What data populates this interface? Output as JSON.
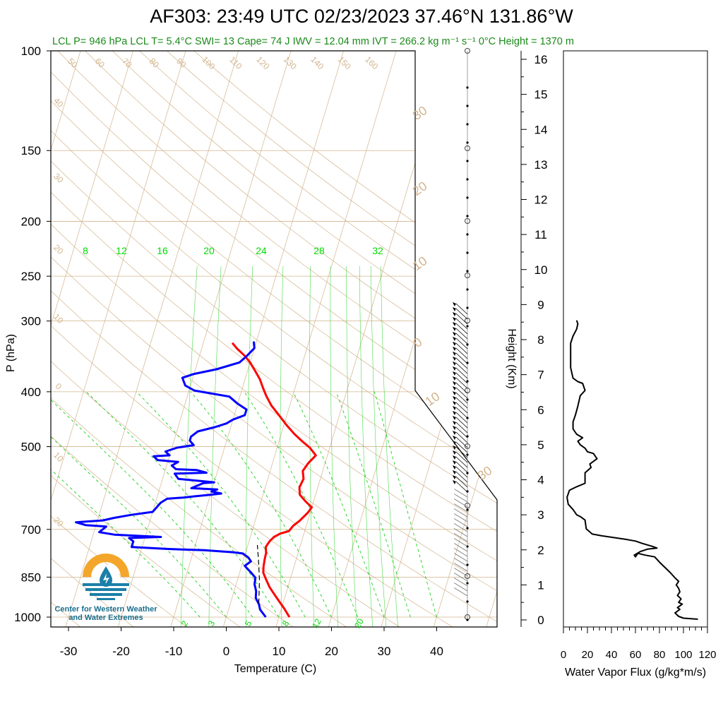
{
  "title": "AF303: 23:49 UTC 02/23/2023  37.46°N 131.86°W",
  "stats_line": "LCL P= 946 hPa  LCL T= 5.4°C  SWI= 13  Cape= 74 J  IWV = 12.04 mm  IVT = 266.2 kg m⁻¹ s⁻¹  0°C Height = 1370 m",
  "logo": {
    "text": "Center for Western Weather\nand Water Extremes",
    "icon": "water-drop-sun-icon",
    "colors": {
      "sun": "#f4a62a",
      "waves": "#1b7fa8"
    }
  },
  "colors": {
    "temperature": "#ff0000",
    "dewpoint": "#0000ff",
    "adiabat": "#d2b48c",
    "mixing_ratio": "#00cc00",
    "isobar": "#d2b48c"
  },
  "chart_data": [
    {
      "type": "line",
      "name": "skewt",
      "xlabel": "Temperature (C)",
      "ylabel": "P (hPa)",
      "y_scale": "log",
      "xlim": [
        -33,
        50
      ],
      "ylim": [
        1010,
        100
      ],
      "xticks": [
        -30,
        -20,
        -10,
        0,
        10,
        20,
        30,
        40
      ],
      "yticks": [
        100,
        150,
        200,
        250,
        300,
        400,
        500,
        700,
        850,
        1000
      ],
      "isotherm_labels": [
        "50",
        "60",
        "70",
        "80",
        "90",
        "100",
        "110",
        "120",
        "130",
        "140",
        "150",
        "160",
        "40",
        "30",
        "20",
        "10",
        "0",
        "10",
        "20"
      ],
      "isotherm_right_labels": [
        "30",
        "20",
        "10",
        "0",
        "10",
        "30"
      ],
      "mixing_ratio_top_labels": [
        "8",
        "12",
        "16",
        "20",
        "24",
        "28",
        "32"
      ],
      "mixing_ratio_bottom_labels": [
        "2",
        "3",
        "5",
        "8",
        "12",
        "20"
      ],
      "series": [
        {
          "role": "temperature",
          "points": [
            [
              12,
              1000
            ],
            [
              10.5,
              965
            ],
            [
              9,
              935
            ],
            [
              7.5,
              905
            ],
            [
              6.5,
              885
            ],
            [
              5.5,
              860
            ],
            [
              4.5,
              835
            ],
            [
              4.2,
              815
            ],
            [
              4,
              790
            ],
            [
              3.9,
              770
            ],
            [
              3.5,
              752
            ],
            [
              3.9,
              735
            ],
            [
              4.5,
              722
            ],
            [
              5.5,
              712
            ],
            [
              7,
              705
            ],
            [
              7.5,
              690
            ],
            [
              8.5,
              675
            ],
            [
              9.5,
              655
            ],
            [
              10,
              640
            ],
            [
              8.5,
              625
            ],
            [
              7,
              608
            ],
            [
              6.5,
              590
            ],
            [
              6.8,
              570
            ],
            [
              6.2,
              552
            ],
            [
              6.8,
              535
            ],
            [
              7.8,
              518
            ],
            [
              6.2,
              502
            ],
            [
              4.5,
              490
            ],
            [
              2.5,
              475
            ],
            [
              0.5,
              458
            ],
            [
              -1.5,
              440
            ],
            [
              -3.5,
              423
            ],
            [
              -5,
              407
            ],
            [
              -6,
              395
            ],
            [
              -7.2,
              380
            ],
            [
              -8.5,
              368
            ],
            [
              -10,
              355
            ],
            [
              -11.5,
              345
            ],
            [
              -13.2,
              336
            ],
            [
              -14.5,
              328
            ]
          ]
        },
        {
          "role": "dewpoint",
          "points": [
            [
              7.5,
              1000
            ],
            [
              6,
              970
            ],
            [
              5.5,
              950
            ],
            [
              4.5,
              925
            ],
            [
              4.2,
              900
            ],
            [
              3.5,
              875
            ],
            [
              3.3,
              852
            ],
            [
              2,
              832
            ],
            [
              0.6,
              812
            ],
            [
              1.5,
              797
            ],
            [
              0.8,
              785
            ],
            [
              -0.5,
              772
            ],
            [
              -2.5,
              768
            ],
            [
              -8,
              762
            ],
            [
              -15,
              758
            ],
            [
              -22,
              752
            ],
            [
              -22,
              735
            ],
            [
              -23,
              725
            ],
            [
              -17,
              722
            ],
            [
              -26,
              715
            ],
            [
              -29,
              708
            ],
            [
              -28,
              692
            ],
            [
              -32,
              688
            ],
            [
              -34,
              680
            ],
            [
              -29,
              675
            ],
            [
              -27,
              668
            ],
            [
              -24,
              660
            ],
            [
              -20,
              652
            ],
            [
              -19,
              628
            ],
            [
              -18,
              618
            ],
            [
              -15,
              615
            ],
            [
              -13,
              612
            ],
            [
              -10,
              608
            ],
            [
              -8,
              605
            ],
            [
              -10,
              600
            ],
            [
              -9,
              595
            ],
            [
              -14,
              592
            ],
            [
              -12,
              580
            ],
            [
              -10,
              578
            ],
            [
              -17,
              570
            ],
            [
              -18,
              558
            ],
            [
              -12,
              556
            ],
            [
              -14,
              550
            ],
            [
              -18,
              548
            ],
            [
              -19,
              540
            ],
            [
              -18,
              532
            ],
            [
              -22,
              528
            ],
            [
              -23,
              520
            ],
            [
              -20,
              518
            ],
            [
              -21,
              510
            ],
            [
              -19,
              502
            ],
            [
              -16,
              497
            ],
            [
              -17,
              488
            ],
            [
              -17,
              480
            ],
            [
              -16,
              470
            ],
            [
              -13,
              462
            ],
            [
              -11,
              455
            ],
            [
              -10,
              448
            ],
            [
              -8,
              440
            ],
            [
              -8,
              430
            ],
            [
              -10,
              420
            ],
            [
              -12,
              408
            ],
            [
              -19,
              398
            ],
            [
              -21,
              390
            ],
            [
              -22,
              378
            ],
            [
              -20,
              372
            ],
            [
              -16,
              365
            ],
            [
              -12,
              355
            ],
            [
              -11,
              346
            ],
            [
              -10,
              335
            ],
            [
              -10.5,
              326
            ]
          ]
        },
        {
          "role": "parcel",
          "points": [
            [
              5.4,
              946
            ],
            [
              4.2,
              860
            ],
            [
              2.8,
              790
            ],
            [
              1.8,
              746
            ]
          ]
        }
      ]
    },
    {
      "type": "line",
      "name": "vapor-flux",
      "xlabel": "Water Vapor Flux (g/kg*m/s)",
      "ylabel": "Height (Km)",
      "xlim": [
        0,
        120
      ],
      "ylim": [
        -0.2,
        16.5
      ],
      "xticks": [
        0,
        20,
        40,
        60,
        80,
        100,
        120
      ],
      "yticks": [
        0,
        1,
        2,
        3,
        4,
        5,
        6,
        7,
        8,
        9,
        10,
        11,
        12,
        13,
        14,
        15,
        16
      ],
      "series": [
        {
          "role": "flux",
          "points": [
            [
              112,
              0.02
            ],
            [
              100,
              0.05
            ],
            [
              96,
              0.1
            ],
            [
              93,
              0.2
            ],
            [
              97,
              0.3
            ],
            [
              95,
              0.35
            ],
            [
              99,
              0.45
            ],
            [
              96,
              0.5
            ],
            [
              98,
              0.6
            ],
            [
              95,
              0.7
            ],
            [
              97,
              0.8
            ],
            [
              96,
              0.9
            ],
            [
              94,
              1
            ],
            [
              96,
              1.1
            ],
            [
              93,
              1.2
            ],
            [
              89,
              1.35
            ],
            [
              86,
              1.45
            ],
            [
              83,
              1.55
            ],
            [
              80,
              1.65
            ],
            [
              76,
              1.8
            ],
            [
              68,
              1.85
            ],
            [
              62,
              1.9
            ],
            [
              60,
              1.8
            ],
            [
              59,
              1.85
            ],
            [
              64,
              1.95
            ],
            [
              70,
              2.02
            ],
            [
              78,
              2.05
            ],
            [
              74,
              2.1
            ],
            [
              66,
              2.18
            ],
            [
              60,
              2.25
            ],
            [
              52,
              2.3
            ],
            [
              42,
              2.35
            ],
            [
              32,
              2.4
            ],
            [
              24,
              2.45
            ],
            [
              19,
              2.6
            ],
            [
              18,
              2.85
            ],
            [
              14,
              2.95
            ],
            [
              11,
              3
            ],
            [
              8,
              3.15
            ],
            [
              4,
              3.3
            ],
            [
              3,
              3.5
            ],
            [
              5,
              3.7
            ],
            [
              11,
              3.8
            ],
            [
              18,
              3.9
            ],
            [
              18,
              4.2
            ],
            [
              23,
              4.35
            ],
            [
              22,
              4.45
            ],
            [
              28,
              4.6
            ],
            [
              25,
              4.75
            ],
            [
              20,
              4.8
            ],
            [
              18,
              4.9
            ],
            [
              14,
              5
            ],
            [
              12,
              5.1
            ],
            [
              16,
              5.2
            ],
            [
              11,
              5.3
            ],
            [
              8,
              5.45
            ],
            [
              8,
              5.65
            ],
            [
              10,
              5.85
            ],
            [
              12,
              6.1
            ],
            [
              14,
              6.4
            ],
            [
              18,
              6.55
            ],
            [
              16,
              6.75
            ],
            [
              12,
              6.8
            ],
            [
              8,
              6.9
            ],
            [
              6,
              7.2
            ],
            [
              6,
              7.5
            ],
            [
              6,
              7.9
            ],
            [
              8,
              8.1
            ],
            [
              11,
              8.3
            ],
            [
              12,
              8.45
            ],
            [
              11,
              8.55
            ]
          ]
        }
      ]
    }
  ]
}
